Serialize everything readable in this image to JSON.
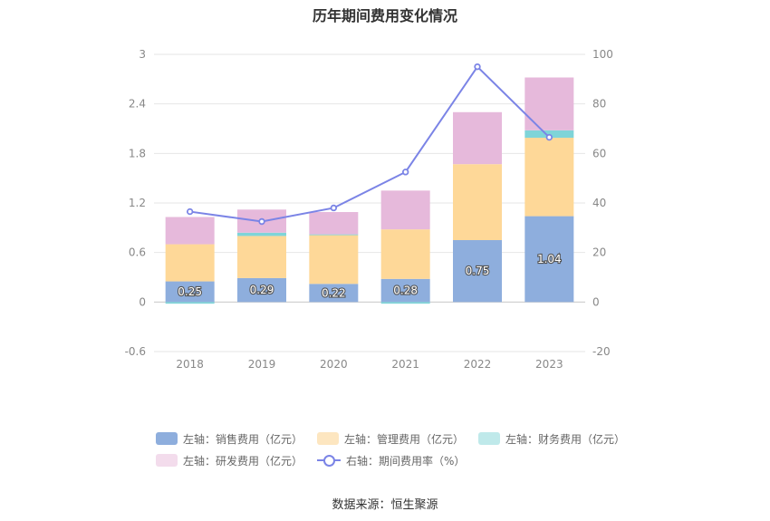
{
  "chart_data": {
    "type": "bar",
    "title": "历年期间费用变化情况",
    "categories": [
      "2018",
      "2019",
      "2020",
      "2021",
      "2022",
      "2023"
    ],
    "left_axis": {
      "ticks": [
        "3",
        "2.4",
        "1.8",
        "1.2",
        "0.6",
        "0",
        "-0.6"
      ],
      "ylim": [
        -0.6,
        3
      ]
    },
    "right_axis": {
      "ticks": [
        "100",
        "80",
        "60",
        "40",
        "20",
        "0",
        "-20"
      ],
      "ylim": [
        -20,
        100
      ]
    },
    "grid": true,
    "legend_position": "bottom",
    "series": [
      {
        "name": "左轴：销售费用（亿元）",
        "type": "bar",
        "axis": "left",
        "color": "#8eaedd",
        "values": [
          0.25,
          0.29,
          0.22,
          0.28,
          0.75,
          1.04
        ],
        "labels": [
          "0.25",
          "0.29",
          "0.22",
          "0.28",
          "0.75",
          "1.04"
        ]
      },
      {
        "name": "左轴：管理费用（亿元）",
        "type": "bar",
        "axis": "left",
        "color": "#fed898",
        "values": [
          0.45,
          0.51,
          0.59,
          0.6,
          0.92,
          0.95
        ]
      },
      {
        "name": "左轴：财务费用（亿元）",
        "type": "bar",
        "axis": "left",
        "color": "#7fd4d8",
        "values": [
          -0.02,
          0.04,
          0.01,
          -0.02,
          0.0,
          0.09
        ]
      },
      {
        "name": "左轴：研发费用（亿元）",
        "type": "bar",
        "axis": "left",
        "color": "#e6b9db",
        "values": [
          0.33,
          0.28,
          0.27,
          0.47,
          0.63,
          0.64
        ]
      },
      {
        "name": "右轴：期间费用率（%）",
        "type": "line",
        "axis": "right",
        "color": "#7b84e6",
        "values": [
          36.5,
          32.5,
          38.0,
          52.5,
          95.0,
          66.5
        ]
      }
    ]
  },
  "legend": {
    "row1": [
      "左轴：销售费用（亿元）",
      "左轴：管理费用（亿元）",
      "左轴：财务费用（亿元）"
    ],
    "row2": [
      "左轴：研发费用（亿元）",
      "右轴：期间费用率（%）"
    ]
  },
  "source_note": "数据来源：恒生聚源"
}
